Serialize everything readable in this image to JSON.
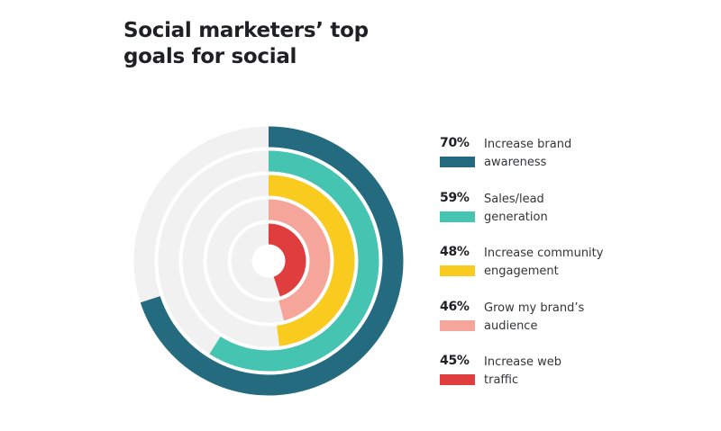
{
  "title_lines": [
    "Social marketers’ top",
    "goals for social"
  ],
  "chart_data": {
    "type": "radial-bar",
    "title": "Social marketers’ top goals for social",
    "unit": "%",
    "series": [
      {
        "pct_label": "70%",
        "label_lines": [
          "Increase brand",
          "awareness"
        ],
        "value": 70,
        "color": "#256b80"
      },
      {
        "pct_label": "59%",
        "label_lines": [
          "Sales/lead",
          "generation"
        ],
        "value": 59,
        "color": "#45c5b1"
      },
      {
        "pct_label": "48%",
        "label_lines": [
          "Increase community",
          "engagement"
        ],
        "value": 48,
        "color": "#f9cb1f"
      },
      {
        "pct_label": "46%",
        "label_lines": [
          "Grow my brand’s",
          "audience"
        ],
        "value": 46,
        "color": "#f6a59b"
      },
      {
        "pct_label": "45%",
        "label_lines": [
          "Increase web",
          "traffic"
        ],
        "value": 45,
        "color": "#e03d3f"
      }
    ],
    "track_color": "#f1f1f1",
    "max": 100,
    "start": "top",
    "direction": "clockwise"
  }
}
